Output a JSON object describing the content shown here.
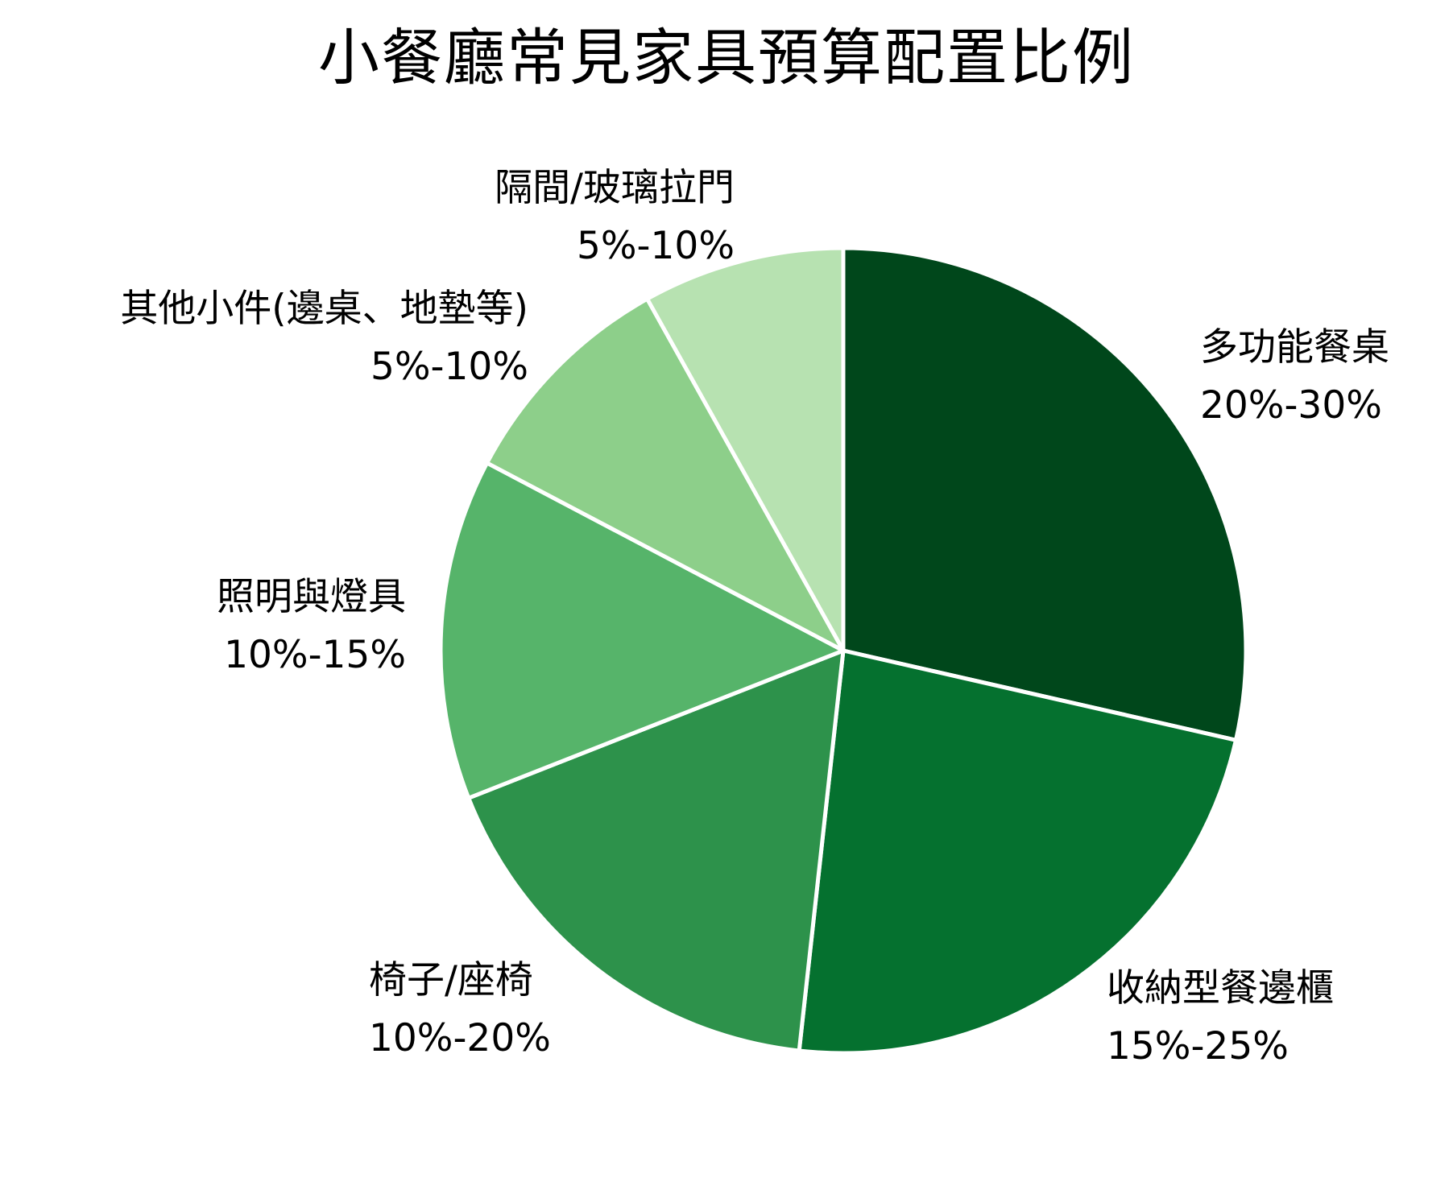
{
  "chart_data": {
    "type": "pie",
    "title": "小餐廳常見家具預算配置比例",
    "start_angle_deg": 90,
    "direction": "clockwise",
    "legend": "none (direct labels)",
    "slices": [
      {
        "label": "多功能餐桌",
        "range": "20%-30%",
        "value": 28.6,
        "color": "#00471b"
      },
      {
        "label": "收納型餐邊櫃",
        "range": "15%-25%",
        "value": 23.2,
        "color": "#05712f"
      },
      {
        "label": "椅子/座椅",
        "range": "10%-20%",
        "value": 17.3,
        "color": "#2d924b"
      },
      {
        "label": "照明與燈具",
        "range": "10%-15%",
        "value": 13.7,
        "color": "#56b46a"
      },
      {
        "label": "其他小件(邊桌、地墊等)",
        "range": "5%-10%",
        "value": 9.2,
        "color": "#8dcf8a"
      },
      {
        "label": "隔間/玻璃拉門",
        "range": "5%-10%",
        "value": 8.1,
        "color": "#b7e2b1"
      }
    ]
  },
  "labels": [
    {
      "name": "多功能餐桌",
      "range": "20%-30%"
    },
    {
      "name": "收納型餐邊櫃",
      "range": "15%-25%"
    },
    {
      "name": "椅子/座椅",
      "range": "10%-20%"
    },
    {
      "name": "照明與燈具",
      "range": "10%-15%"
    },
    {
      "name": "其他小件(邊桌、地墊等)",
      "range": "5%-10%"
    },
    {
      "name": "隔間/玻璃拉門",
      "range": "5%-10%"
    }
  ]
}
